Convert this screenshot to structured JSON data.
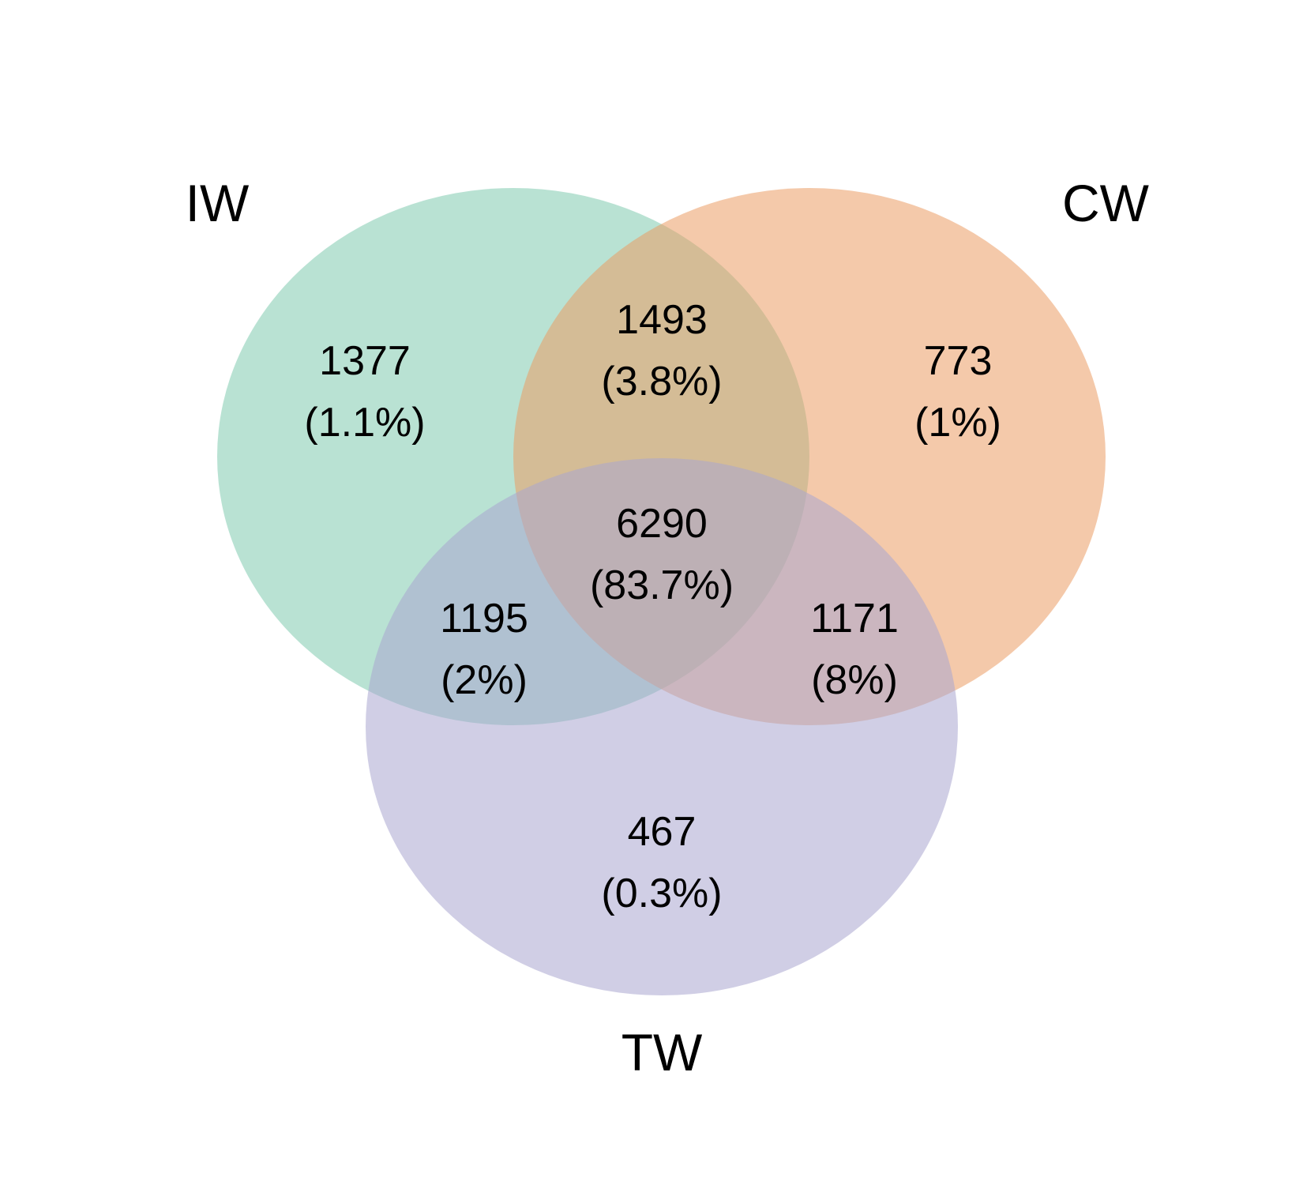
{
  "chart_data": {
    "type": "venn",
    "sets": [
      {
        "id": "iw",
        "label": "IW",
        "color": "#7fcaae"
      },
      {
        "id": "cw",
        "label": "CW",
        "color": "#eb9d65"
      },
      {
        "id": "tw",
        "label": "TW",
        "color": "#aaa6cf"
      }
    ],
    "regions": [
      {
        "id": "iw-only",
        "sets": [
          "IW"
        ],
        "count": "1377",
        "percent": "(1.1%)"
      },
      {
        "id": "iw-cw",
        "sets": [
          "IW",
          "CW"
        ],
        "count": "1493",
        "percent": "(3.8%)"
      },
      {
        "id": "cw-only",
        "sets": [
          "CW"
        ],
        "count": "773",
        "percent": "(1%)"
      },
      {
        "id": "iw-cw-tw",
        "sets": [
          "IW",
          "CW",
          "TW"
        ],
        "count": "6290",
        "percent": "(83.7%)"
      },
      {
        "id": "iw-tw",
        "sets": [
          "IW",
          "TW"
        ],
        "count": "1195",
        "percent": "(2%)"
      },
      {
        "id": "cw-tw",
        "sets": [
          "CW",
          "TW"
        ],
        "count": "1171",
        "percent": "(8%)"
      },
      {
        "id": "tw-only",
        "sets": [
          "TW"
        ],
        "count": "467",
        "percent": "(0.3%)"
      }
    ],
    "circle_opacity": 0.55
  }
}
